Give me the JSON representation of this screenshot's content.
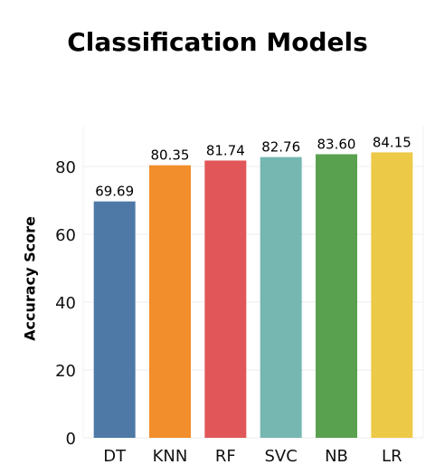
{
  "chart_data": {
    "type": "bar",
    "title": "Classification Models",
    "xlabel": "",
    "ylabel": "Accuracy Score",
    "categories": [
      "DT",
      "KNN",
      "RF",
      "SVC",
      "NB",
      "LR"
    ],
    "values": [
      69.69,
      80.35,
      81.74,
      82.76,
      83.6,
      84.15
    ],
    "data_labels": [
      "69.69",
      "80.35",
      "81.74",
      "82.76",
      "83.60",
      "84.15"
    ],
    "colors": [
      "#4e79a7",
      "#f28e2b",
      "#e15759",
      "#76b7b2",
      "#59a14f",
      "#edc948"
    ],
    "yticks": [
      0,
      20,
      40,
      60,
      80
    ],
    "ylim": [
      0,
      92
    ],
    "grid": true,
    "legend": "none"
  }
}
